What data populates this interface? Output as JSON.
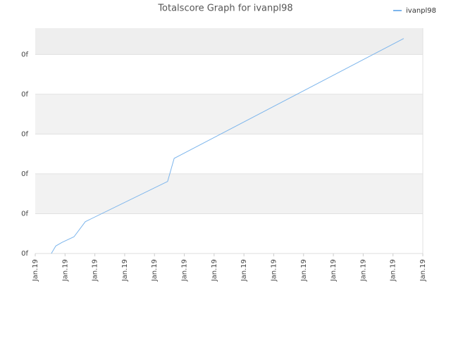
{
  "chart_data": {
    "type": "line",
    "title": "Totalscore Graph for ivanpl98",
    "x": [
      0.54,
      0.69,
      0.9,
      1.3,
      1.68,
      4.44,
      4.66,
      12.36
    ],
    "series": [
      {
        "name": "ivanpl98",
        "color": "#7cb5ec",
        "values": [
          0,
          0.19,
          0.28,
          0.42,
          0.8,
          1.81,
          2.39,
          5.4
        ]
      }
    ],
    "xlim": [
      0,
      13
    ],
    "xticks": [
      {
        "value": 0,
        "label": "Jan.19"
      },
      {
        "value": 1,
        "label": "Jan.19"
      },
      {
        "value": 2,
        "label": "Jan.19"
      },
      {
        "value": 3,
        "label": "Jan.19"
      },
      {
        "value": 4,
        "label": "Jan.19"
      },
      {
        "value": 5,
        "label": "Jan.19"
      },
      {
        "value": 6,
        "label": "Jan.19"
      },
      {
        "value": 7,
        "label": "Jan.19"
      },
      {
        "value": 8,
        "label": "Jan.19"
      },
      {
        "value": 9,
        "label": "Jan.19"
      },
      {
        "value": 10,
        "label": "Jan.19"
      },
      {
        "value": 11,
        "label": "Jan.19"
      },
      {
        "value": 12,
        "label": "Jan.19"
      },
      {
        "value": 13,
        "label": "Jan.19"
      }
    ],
    "ylim": [
      0,
      5.66
    ],
    "yticks": [
      {
        "value": 0,
        "label": "0f"
      },
      {
        "value": 1,
        "label": "0f"
      },
      {
        "value": 2,
        "label": "0f"
      },
      {
        "value": 3,
        "label": "0f"
      },
      {
        "value": 4,
        "label": "0f"
      },
      {
        "value": 5,
        "label": "0f"
      }
    ],
    "grid": true,
    "legend": "top-right"
  }
}
